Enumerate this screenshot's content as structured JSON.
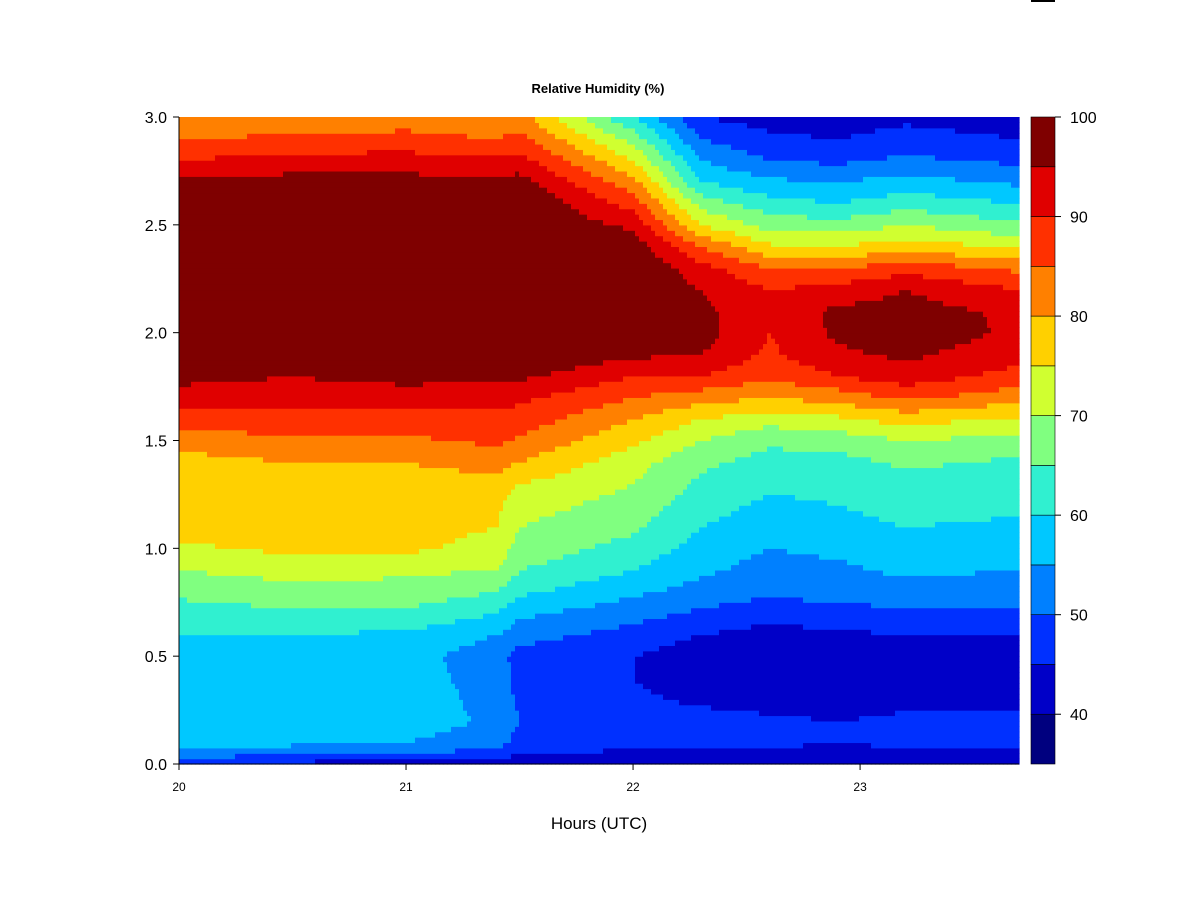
{
  "chart_data": {
    "type": "heatmap",
    "title": "Relative Humidity (%)",
    "xlabel": "Hours (UTC)",
    "ylabel": "",
    "xlim": [
      20,
      23.7
    ],
    "ylim": [
      0,
      3
    ],
    "x_ticks": [
      "20",
      "21",
      "22",
      "23"
    ],
    "y_ticks": [
      "0.0",
      "0.5",
      "1.0",
      "1.5",
      "2.0",
      "2.5",
      "3.0"
    ],
    "colorbar": {
      "range": [
        35,
        100
      ],
      "tick_labels": [
        "40",
        "50",
        "60",
        "70",
        "80",
        "90",
        "100"
      ],
      "levels": [
        35,
        40,
        45,
        50,
        55,
        60,
        65,
        70,
        75,
        80,
        85,
        90,
        95,
        100
      ],
      "colors": [
        "#00007F",
        "#0000C8",
        "#0030FF",
        "#0080FF",
        "#00C8FF",
        "#30F0D0",
        "#80FF80",
        "#D0FF30",
        "#FFD000",
        "#FF8000",
        "#FF3000",
        "#E00000",
        "#7F0000"
      ]
    },
    "profile_z": [
      0.0,
      0.05,
      0.1,
      0.2,
      0.3,
      0.4,
      0.5,
      0.6,
      0.7,
      0.8,
      0.9,
      1.0,
      1.1,
      1.2,
      1.3,
      1.4,
      1.5,
      1.6,
      1.7,
      1.8,
      1.9,
      2.0,
      2.1,
      2.2,
      2.3,
      2.4,
      2.5,
      2.6,
      2.7,
      2.8,
      2.9,
      3.0
    ],
    "profiles": [
      {
        "time": 20.0,
        "rh": [
          45,
          52,
          56,
          58,
          58,
          57,
          58,
          60,
          63,
          66,
          70,
          74,
          78,
          78,
          76,
          78,
          82,
          88,
          92,
          97,
          99,
          100,
          100,
          100,
          100,
          100,
          100,
          100,
          96,
          90,
          85,
          82
        ]
      },
      {
        "time": 20.5,
        "rh": [
          43,
          52,
          56,
          60,
          59,
          58,
          58,
          60,
          64,
          68,
          72,
          76,
          77,
          76,
          76,
          80,
          84,
          88,
          92,
          95,
          98,
          100,
          100,
          100,
          100,
          100,
          100,
          100,
          97,
          92,
          86,
          80
        ]
      },
      {
        "time": 21.0,
        "rh": [
          42,
          50,
          55,
          58,
          58,
          57,
          57,
          59,
          64,
          68,
          71,
          76,
          77,
          78,
          78,
          80,
          84,
          88,
          92,
          97,
          99,
          100,
          100,
          100,
          100,
          100,
          100,
          100,
          97,
          92,
          87,
          82
        ]
      },
      {
        "time": 21.4,
        "rh": [
          42,
          48,
          52,
          54,
          53,
          53,
          52,
          55,
          60,
          65,
          70,
          73,
          75,
          76,
          78,
          82,
          86,
          88,
          92,
          96,
          100,
          100,
          100,
          100,
          100,
          100,
          100,
          100,
          96,
          91,
          85,
          80
        ]
      },
      {
        "time": 21.5,
        "rh": [
          42,
          45,
          48,
          50,
          49,
          48,
          48,
          52,
          56,
          61,
          65,
          68,
          70,
          72,
          75,
          80,
          84,
          88,
          91,
          96,
          100,
          100,
          100,
          100,
          100,
          100,
          100,
          100,
          97,
          92,
          87,
          82
        ]
      },
      {
        "time": 22.0,
        "rh": [
          40,
          44,
          47,
          48,
          46,
          45,
          45,
          48,
          52,
          56,
          60,
          63,
          66,
          68,
          70,
          72,
          76,
          80,
          85,
          90,
          96,
          100,
          100,
          100,
          100,
          98,
          94,
          88,
          82,
          75,
          68,
          60
        ]
      },
      {
        "time": 22.3,
        "rh": [
          40,
          43,
          46,
          47,
          44,
          42,
          42,
          45,
          49,
          53,
          56,
          58,
          60,
          62,
          64,
          66,
          70,
          75,
          82,
          90,
          95,
          97,
          96,
          95,
          92,
          85,
          75,
          68,
          60,
          55,
          50,
          45
        ]
      },
      {
        "time": 22.6,
        "rh": [
          40,
          44,
          46,
          46,
          43,
          40,
          40,
          43,
          47,
          51,
          53,
          55,
          57,
          59,
          61,
          63,
          66,
          72,
          80,
          86,
          89,
          90,
          92,
          90,
          85,
          76,
          68,
          62,
          56,
          50,
          46,
          43
        ]
      },
      {
        "time": 22.9,
        "rh": [
          40,
          43,
          45,
          45,
          42,
          40,
          41,
          44,
          48,
          52,
          54,
          56,
          58,
          60,
          61,
          63,
          67,
          74,
          82,
          90,
          94,
          96,
          96,
          92,
          85,
          75,
          67,
          60,
          55,
          49,
          45,
          42
        ]
      },
      {
        "time": 23.2,
        "rh": [
          40,
          44,
          46,
          46,
          44,
          42,
          42,
          45,
          49,
          53,
          56,
          58,
          60,
          62,
          63,
          66,
          70,
          77,
          86,
          93,
          96,
          98,
          97,
          95,
          88,
          78,
          70,
          63,
          57,
          51,
          47,
          44
        ]
      },
      {
        "time": 23.7,
        "rh": [
          40,
          44,
          46,
          46,
          44,
          42,
          42,
          45,
          49,
          52,
          55,
          57,
          59,
          61,
          62,
          64,
          68,
          74,
          82,
          88,
          92,
          94,
          94,
          90,
          84,
          74,
          66,
          60,
          54,
          49,
          45,
          42
        ]
      }
    ]
  }
}
